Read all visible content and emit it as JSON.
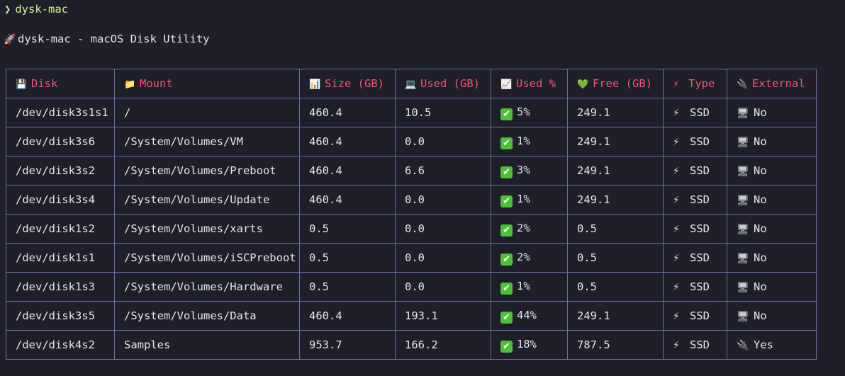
{
  "prompt": {
    "symbol": "❯",
    "command": "dysk-mac"
  },
  "heading": {
    "icon": "rocket-icon",
    "text": "dysk-mac - macOS Disk Utility"
  },
  "table": {
    "headers": [
      {
        "label": "Disk",
        "icon": "floppy-disk-icon",
        "glyph": "💾"
      },
      {
        "label": "Mount",
        "icon": "folder-icon",
        "glyph": "📁"
      },
      {
        "label": "Size (GB)",
        "icon": "bar-chart-icon",
        "glyph": "📊"
      },
      {
        "label": "Used (GB)",
        "icon": "laptop-icon",
        "glyph": "💻"
      },
      {
        "label": "Used %",
        "icon": "chart-increasing-icon",
        "glyph": "📈"
      },
      {
        "label": "Free (GB)",
        "icon": "green-heart-icon",
        "glyph": "💚"
      },
      {
        "label": "Type",
        "icon": "lightning-icon",
        "glyph": "⚡"
      },
      {
        "label": "External",
        "icon": "plug-icon",
        "glyph": "🔌"
      }
    ],
    "rows": [
      {
        "disk": "/dev/disk3s1s1",
        "mount": "/",
        "size": "460.4",
        "used": "10.5",
        "used_pct": "5%",
        "free": "249.1",
        "type": "SSD",
        "external": "No"
      },
      {
        "disk": "/dev/disk3s6",
        "mount": "/System/Volumes/VM",
        "size": "460.4",
        "used": "0.0",
        "used_pct": "1%",
        "free": "249.1",
        "type": "SSD",
        "external": "No"
      },
      {
        "disk": "/dev/disk3s2",
        "mount": "/System/Volumes/Preboot",
        "size": "460.4",
        "used": "6.6",
        "used_pct": "3%",
        "free": "249.1",
        "type": "SSD",
        "external": "No"
      },
      {
        "disk": "/dev/disk3s4",
        "mount": "/System/Volumes/Update",
        "size": "460.4",
        "used": "0.0",
        "used_pct": "1%",
        "free": "249.1",
        "type": "SSD",
        "external": "No"
      },
      {
        "disk": "/dev/disk1s2",
        "mount": "/System/Volumes/xarts",
        "size": "0.5",
        "used": "0.0",
        "used_pct": "2%",
        "free": "0.5",
        "type": "SSD",
        "external": "No"
      },
      {
        "disk": "/dev/disk1s1",
        "mount": "/System/Volumes/iSCPreboot",
        "size": "0.5",
        "used": "0.0",
        "used_pct": "2%",
        "free": "0.5",
        "type": "SSD",
        "external": "No"
      },
      {
        "disk": "/dev/disk1s3",
        "mount": "/System/Volumes/Hardware",
        "size": "0.5",
        "used": "0.0",
        "used_pct": "1%",
        "free": "0.5",
        "type": "SSD",
        "external": "No"
      },
      {
        "disk": "/dev/disk3s5",
        "mount": "/System/Volumes/Data",
        "size": "460.4",
        "used": "193.1",
        "used_pct": "44%",
        "free": "249.1",
        "type": "SSD",
        "external": "No"
      },
      {
        "disk": "/dev/disk4s2",
        "mount": "Samples",
        "size": "953.7",
        "used": "166.2",
        "used_pct": "18%",
        "free": "787.5",
        "type": "SSD",
        "external": "Yes"
      }
    ]
  },
  "colors": {
    "background": "#1e1f29",
    "header_text": "#f2557a",
    "prompt_text": "#d6ec9c",
    "border": "#6d6f9c",
    "check_green": "#4fbe3b"
  }
}
